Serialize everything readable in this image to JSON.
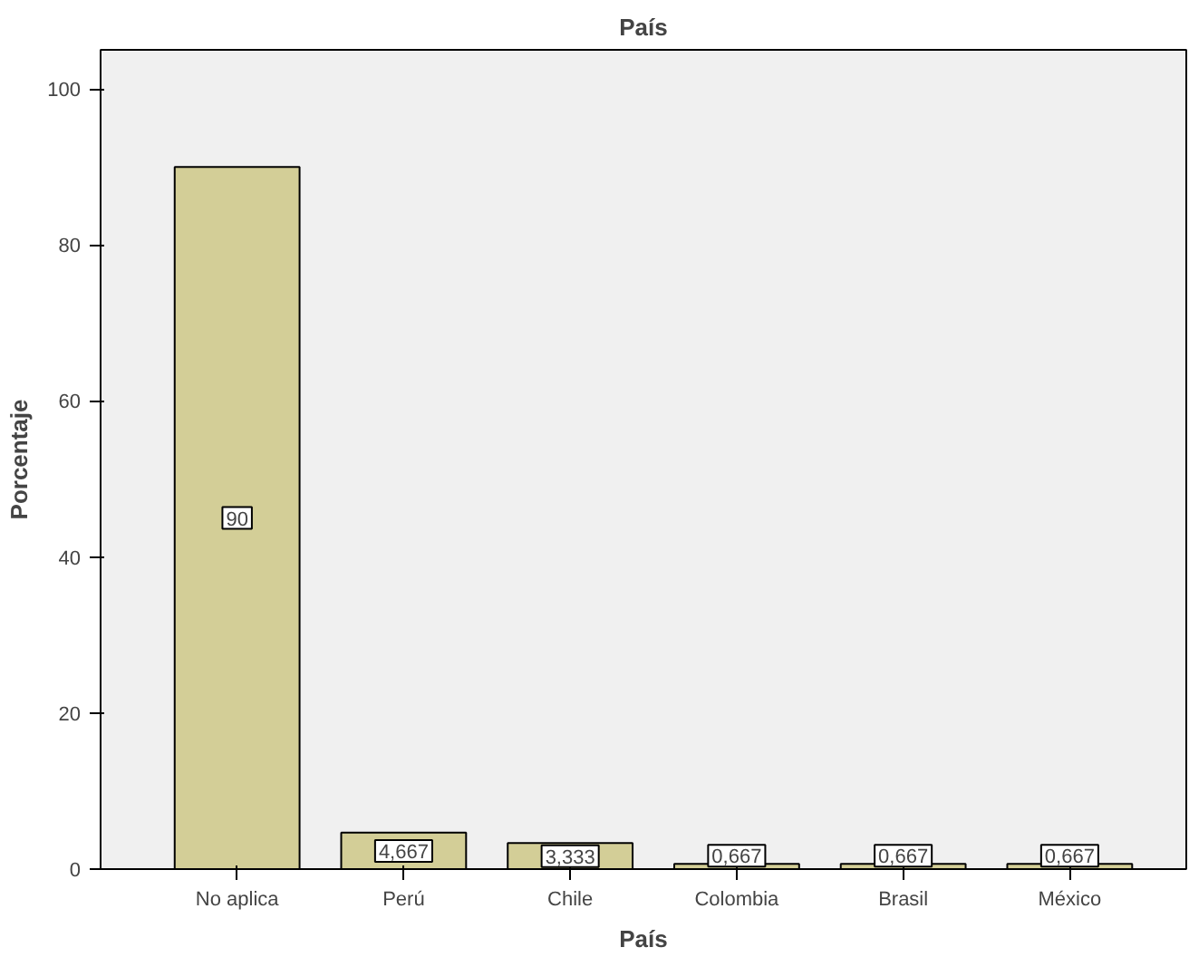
{
  "chart_data": {
    "type": "bar",
    "title": "País",
    "xlabel": "País",
    "ylabel": "Porcentaje",
    "categories": [
      "No aplica",
      "Perú",
      "Chile",
      "Colombia",
      "Brasil",
      "México"
    ],
    "values": [
      90,
      4.667,
      3.333,
      0.667,
      0.667,
      0.667
    ],
    "value_labels": [
      "90",
      "4,667",
      "3,333",
      "0,667",
      "0,667",
      "0,667"
    ],
    "color": "#d3ce97",
    "ylim": [
      0,
      105
    ],
    "yticks": [
      0,
      20,
      40,
      60,
      80,
      100
    ],
    "grid": false
  }
}
